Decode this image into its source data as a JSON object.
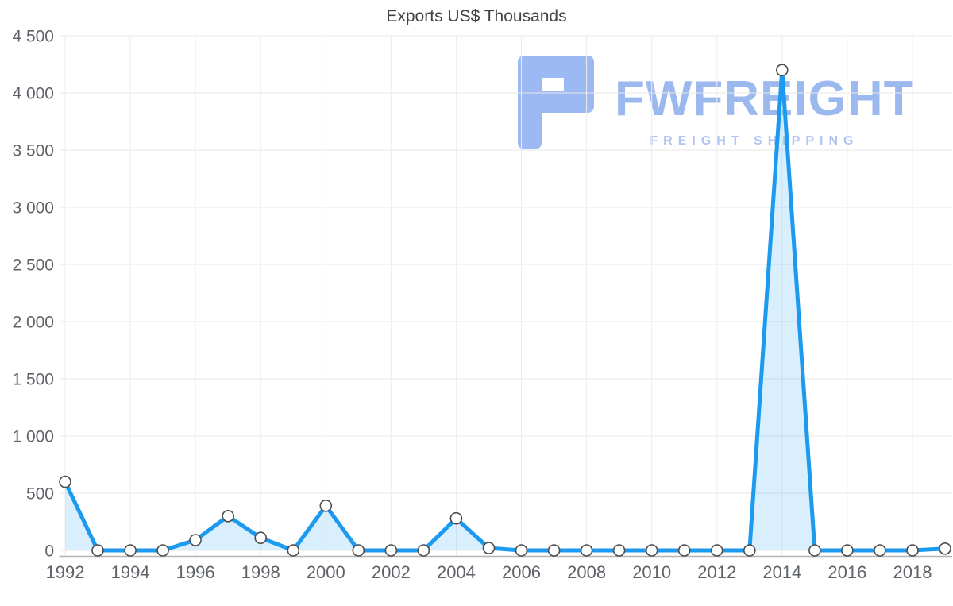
{
  "title": "Exports US$ Thousands",
  "watermark": {
    "brand": "FWFREIGHT",
    "tagline": "FREIGHT SHIPPING",
    "logo_color": "#9db9f3",
    "brand_color": "#9cb9ef",
    "tagline_color": "#b0c5f1"
  },
  "chart_data": {
    "type": "area",
    "title": "Exports US$ Thousands",
    "x": [
      1992,
      1993,
      1994,
      1995,
      1996,
      1997,
      1998,
      1999,
      2000,
      2001,
      2002,
      2003,
      2004,
      2005,
      2006,
      2007,
      2008,
      2009,
      2010,
      2011,
      2012,
      2013,
      2014,
      2015,
      2016,
      2017,
      2018,
      2019
    ],
    "values": [
      600,
      0,
      0,
      0,
      90,
      300,
      110,
      0,
      390,
      0,
      0,
      0,
      280,
      20,
      0,
      0,
      0,
      0,
      0,
      0,
      0,
      0,
      4200,
      0,
      0,
      0,
      0,
      15
    ],
    "series_name": "Exports US$ Thousands",
    "xlabel": "",
    "ylabel": "",
    "ylim": [
      0,
      4500
    ],
    "xlim": [
      1992,
      2019
    ],
    "y_ticks": [
      0,
      500,
      1000,
      1500,
      2000,
      2500,
      3000,
      3500,
      4000,
      4500
    ],
    "y_tick_labels": [
      "0",
      "500",
      "1 000",
      "1 500",
      "2 000",
      "2 500",
      "3 000",
      "3 500",
      "4 000",
      "4 500"
    ],
    "x_ticks": [
      1992,
      1994,
      1996,
      1998,
      2000,
      2002,
      2004,
      2006,
      2008,
      2010,
      2012,
      2014,
      2016,
      2018
    ],
    "grid": true,
    "legend": false,
    "colors": {
      "line": "#1b9af0",
      "area": "rgba(27,154,240,0.16)",
      "marker_fill": "#ffffff",
      "marker_stroke": "#4d4d4d",
      "grid_h": "#e7e7e7",
      "grid_v": "#ededed",
      "axis_left": "#cfcfcf",
      "axis_bottom": "#b5b5b5",
      "tick_label": "#5f6368",
      "title": "#3f4245"
    }
  }
}
